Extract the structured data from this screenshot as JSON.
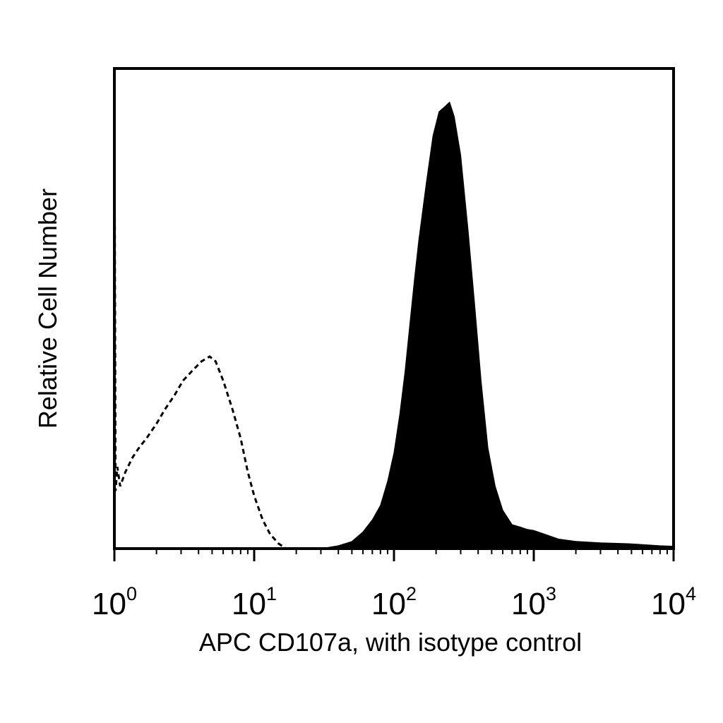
{
  "chart_data": {
    "type": "area",
    "xscale": "log",
    "xlim": [
      1,
      10000
    ],
    "ylim": [
      0,
      1
    ],
    "xlabel": "APC CD107a, with isotype control",
    "ylabel": "Relative Cell Number",
    "xticks": [
      {
        "value": 1,
        "base": "10",
        "exp": "0"
      },
      {
        "value": 10,
        "base": "10",
        "exp": "1"
      },
      {
        "value": 100,
        "base": "10",
        "exp": "2"
      },
      {
        "value": 1000,
        "base": "10",
        "exp": "3"
      },
      {
        "value": 10000,
        "base": "10",
        "exp": "4"
      }
    ],
    "grid": false,
    "series": [
      {
        "style": "dashed-outline",
        "color": "#000000",
        "points": [
          [
            1.0,
            0.99
          ],
          [
            1.02,
            0.12
          ],
          [
            1.05,
            0.17
          ],
          [
            1.1,
            0.13
          ],
          [
            1.2,
            0.16
          ],
          [
            1.35,
            0.19
          ],
          [
            1.5,
            0.21
          ],
          [
            1.7,
            0.23
          ],
          [
            2.0,
            0.26
          ],
          [
            2.3,
            0.29
          ],
          [
            2.7,
            0.32
          ],
          [
            3.1,
            0.35
          ],
          [
            3.6,
            0.37
          ],
          [
            4.2,
            0.39
          ],
          [
            4.8,
            0.4
          ],
          [
            5.3,
            0.39
          ],
          [
            6.0,
            0.35
          ],
          [
            7.0,
            0.29
          ],
          [
            8.0,
            0.23
          ],
          [
            9.0,
            0.16
          ],
          [
            10.0,
            0.11
          ],
          [
            11.5,
            0.06
          ],
          [
            13.0,
            0.03
          ],
          [
            15.0,
            0.01
          ],
          [
            17.0,
            0.0
          ]
        ]
      },
      {
        "style": "filled",
        "color": "#000000",
        "points": [
          [
            30,
            0.0
          ],
          [
            40,
            0.006
          ],
          [
            50,
            0.015
          ],
          [
            60,
            0.035
          ],
          [
            70,
            0.06
          ],
          [
            80,
            0.09
          ],
          [
            90,
            0.14
          ],
          [
            100,
            0.2
          ],
          [
            110,
            0.28
          ],
          [
            120,
            0.37
          ],
          [
            130,
            0.47
          ],
          [
            140,
            0.56
          ],
          [
            150,
            0.64
          ],
          [
            170,
            0.76
          ],
          [
            190,
            0.86
          ],
          [
            210,
            0.91
          ],
          [
            230,
            0.92
          ],
          [
            250,
            0.93
          ],
          [
            270,
            0.9
          ],
          [
            300,
            0.82
          ],
          [
            340,
            0.66
          ],
          [
            380,
            0.5
          ],
          [
            420,
            0.35
          ],
          [
            470,
            0.21
          ],
          [
            530,
            0.13
          ],
          [
            600,
            0.08
          ],
          [
            700,
            0.05
          ],
          [
            800,
            0.045
          ],
          [
            900,
            0.04
          ],
          [
            1000,
            0.038
          ],
          [
            1200,
            0.03
          ],
          [
            1500,
            0.02
          ],
          [
            2000,
            0.015
          ],
          [
            3000,
            0.012
          ],
          [
            5000,
            0.01
          ],
          [
            8000,
            0.006
          ],
          [
            10000,
            0.005
          ]
        ]
      }
    ]
  }
}
